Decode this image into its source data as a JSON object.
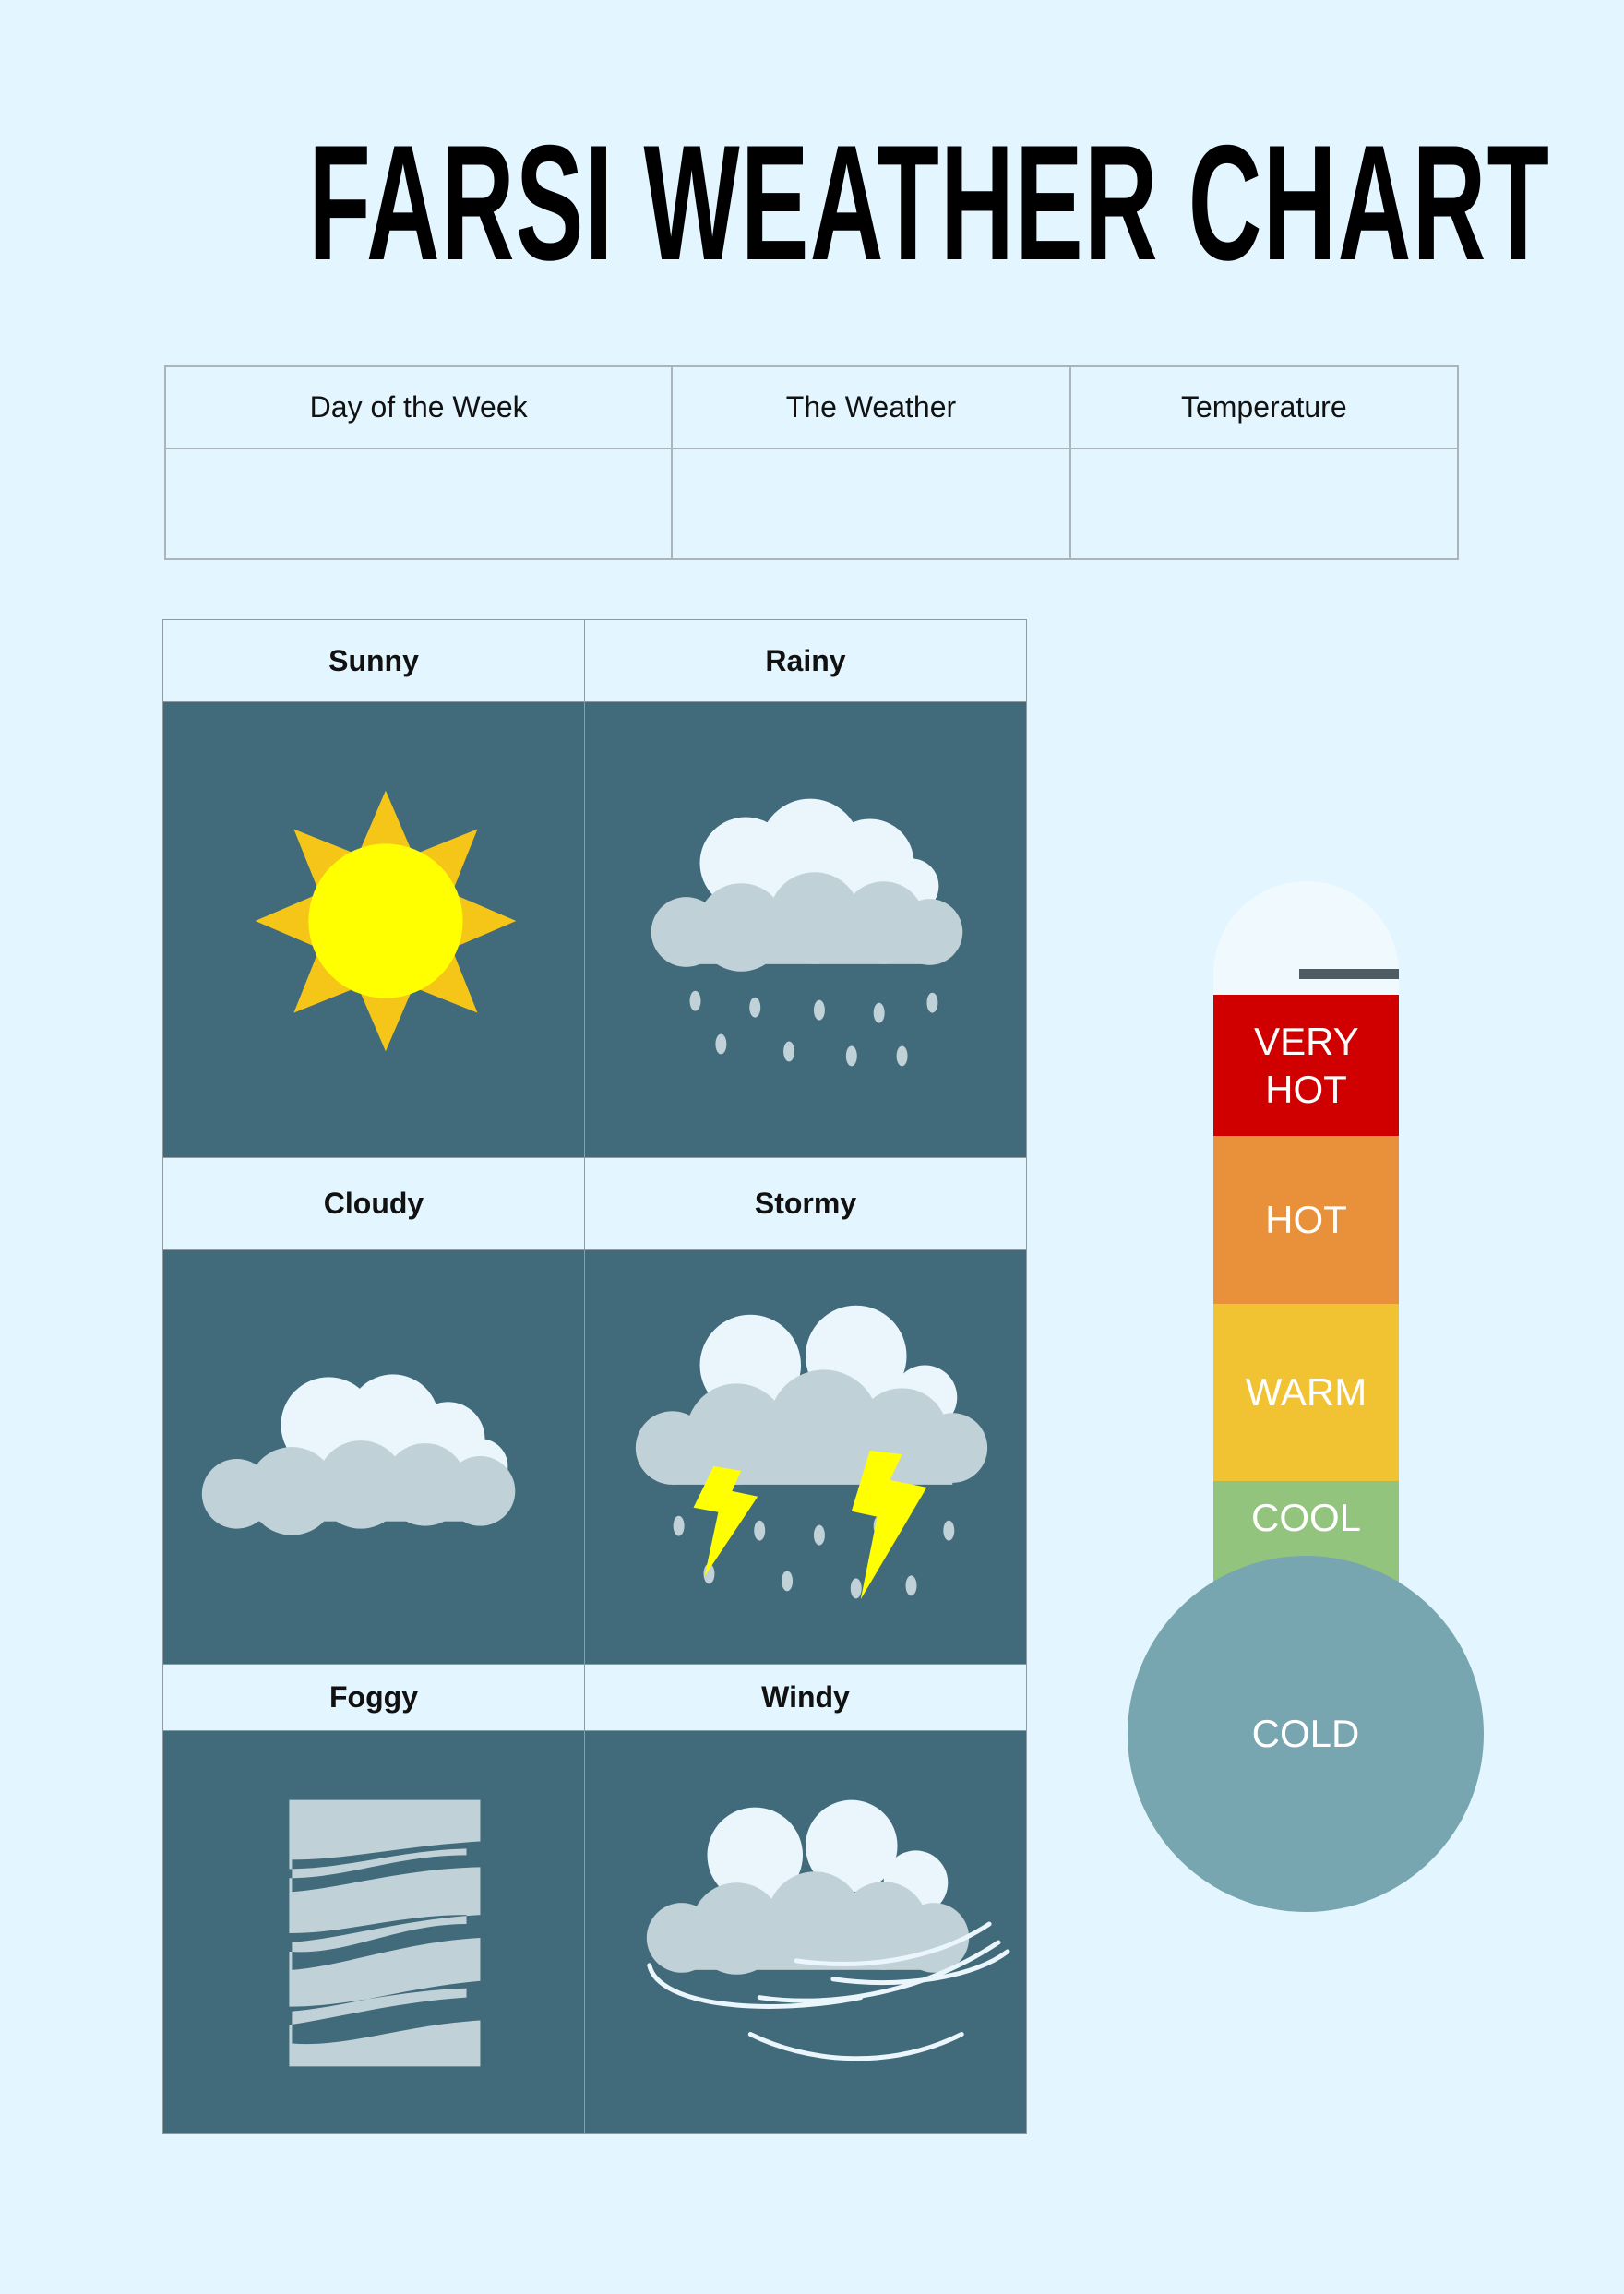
{
  "title": "FARSI WEATHER CHART",
  "log_table": {
    "headers": [
      "Day of the Week",
      "The Weather",
      "Temperature"
    ],
    "rows": [
      [
        "",
        "",
        ""
      ]
    ]
  },
  "weather_types": [
    {
      "label": "Sunny",
      "icon": "sun-icon"
    },
    {
      "label": "Rainy",
      "icon": "rain-cloud-icon"
    },
    {
      "label": "Cloudy",
      "icon": "cloud-icon"
    },
    {
      "label": "Stormy",
      "icon": "storm-cloud-icon"
    },
    {
      "label": "Foggy",
      "icon": "fog-icon"
    },
    {
      "label": "Windy",
      "icon": "wind-cloud-icon"
    }
  ],
  "thermometer": {
    "levels": [
      {
        "label": "VERY HOT",
        "color": "#d10000"
      },
      {
        "label": "HOT",
        "color": "#e8903a"
      },
      {
        "label": "WARM",
        "color": "#f1c232"
      },
      {
        "label": "COOL",
        "color": "#93c47d"
      },
      {
        "label": "COLD",
        "color": "#77a5b0"
      }
    ]
  },
  "colors": {
    "background": "#e3f5fe",
    "panel": "#416a7b"
  }
}
